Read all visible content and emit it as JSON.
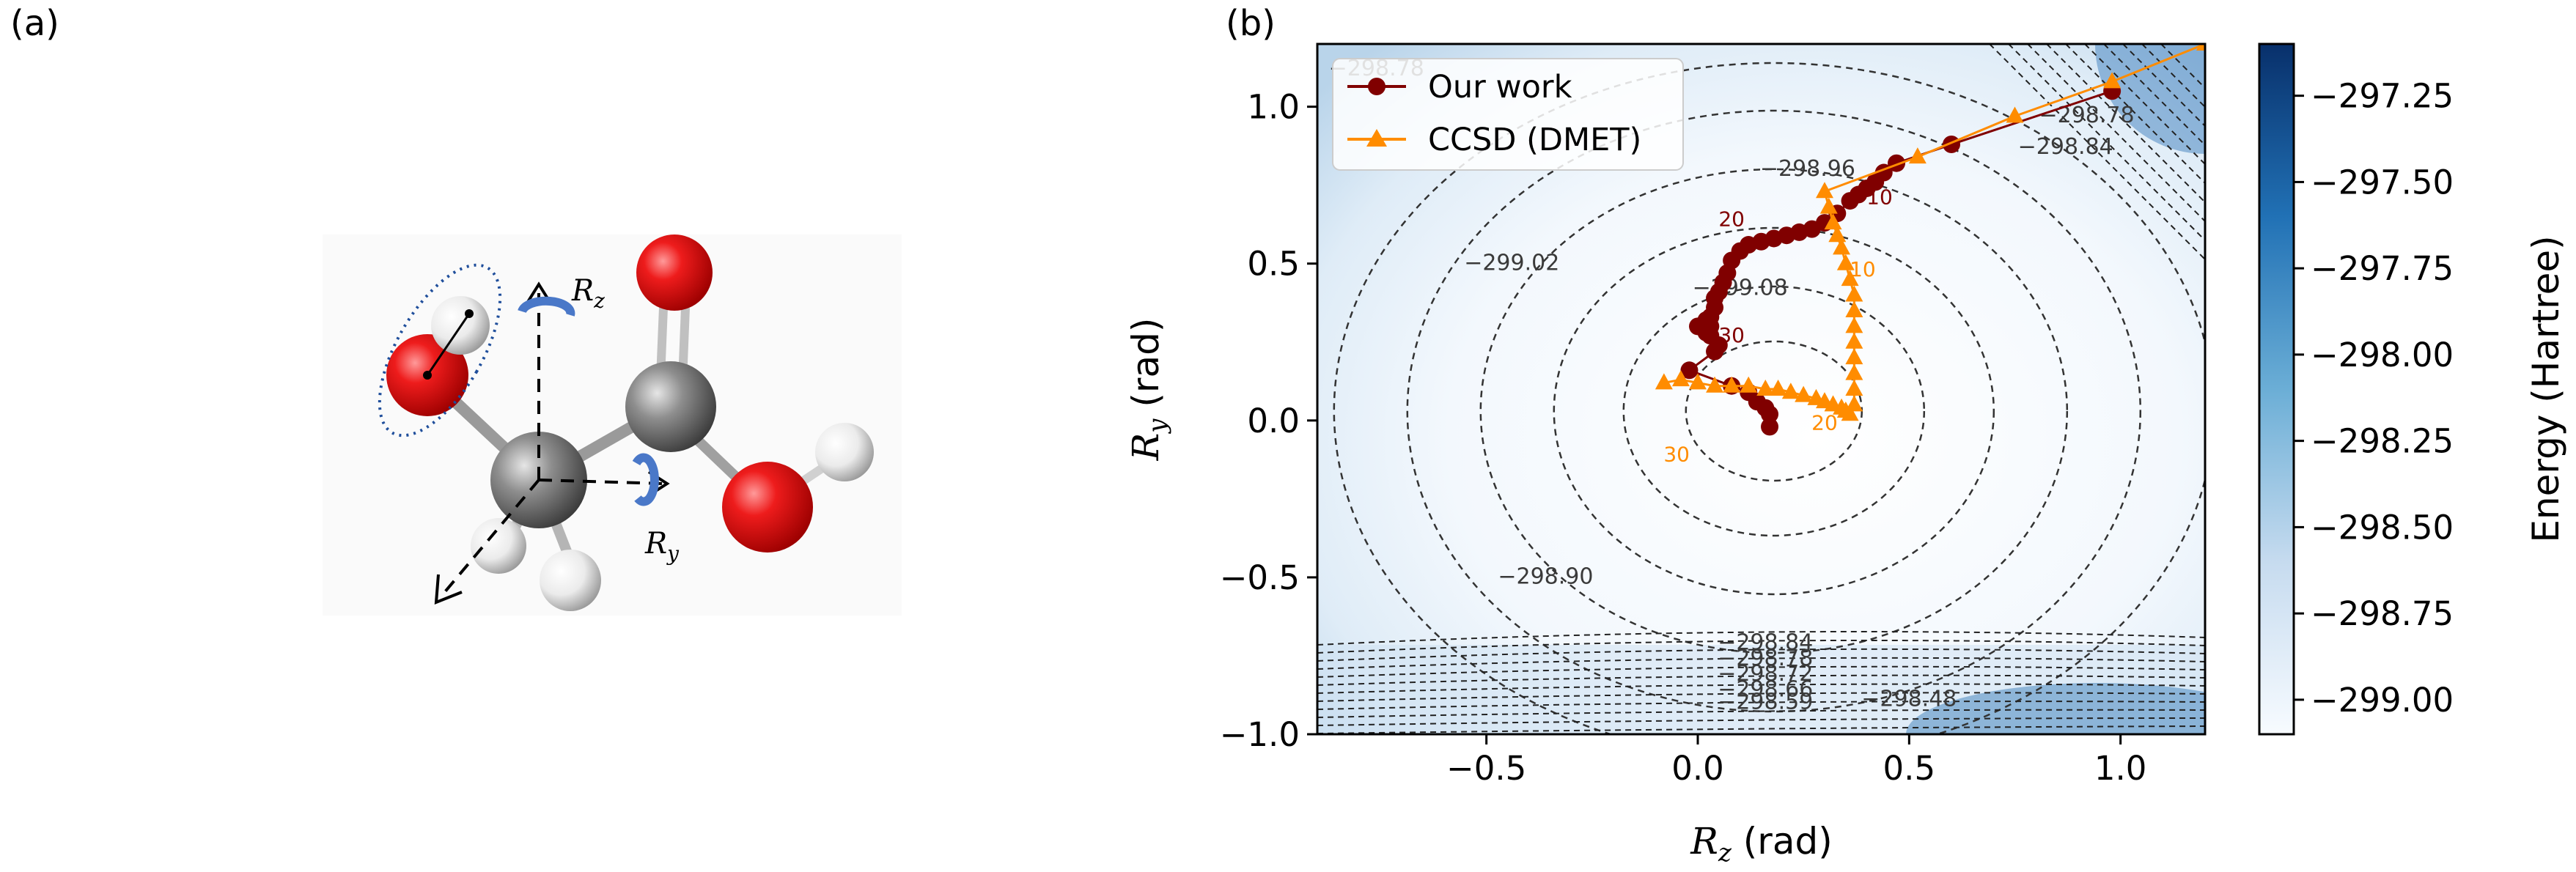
{
  "panel_labels": {
    "a": "(a)",
    "b": "(b)"
  },
  "molecule": {
    "rz_label": "R",
    "rz_sub": "z",
    "ry_label": "R",
    "ry_sub": "y"
  },
  "chart_data": {
    "type": "contour",
    "xlabel": "R",
    "xlabel_sub": "z",
    "xlabel_unit": "(rad)",
    "ylabel": "R",
    "ylabel_sub": "y",
    "ylabel_unit": "(rad)",
    "xlim": [
      -0.9,
      1.2
    ],
    "ylim": [
      -1.0,
      1.2
    ],
    "xticks": [
      -0.5,
      0.0,
      0.5,
      1.0
    ],
    "xtick_labels": [
      "−0.5",
      "0.0",
      "0.5",
      "1.0"
    ],
    "yticks": [
      -1.0,
      -0.5,
      0.0,
      0.5,
      1.0
    ],
    "ytick_labels": [
      "−1.0",
      "−0.5",
      "0.0",
      "0.5",
      "1.0"
    ],
    "grid": false,
    "legend_position": "top-left",
    "colorbar": {
      "label": "Energy (Hartree)",
      "range": [
        -299.1,
        -297.1
      ],
      "ticks": [
        -297.25,
        -297.5,
        -297.75,
        -298.0,
        -298.25,
        -298.5,
        -298.75,
        -299.0
      ],
      "tick_labels": [
        "−297.25",
        "−297.50",
        "−297.75",
        "−298.00",
        "−298.25",
        "−298.50",
        "−298.75",
        "−299.00"
      ],
      "colors": [
        "#f7fbff",
        "#c6dbef",
        "#6baed6",
        "#2171b5",
        "#08306b"
      ]
    },
    "contour_labels": [
      {
        "text": "299.02",
        "x": -0.44,
        "y": 0.48
      },
      {
        "text": "299.08",
        "x": 0.1,
        "y": 0.4
      },
      {
        "text": "298.96",
        "x": 0.26,
        "y": 0.78
      },
      {
        "text": "298.84",
        "x": 0.87,
        "y": 0.85
      },
      {
        "text": "298.90",
        "x": -0.36,
        "y": -0.52
      },
      {
        "text": "298.84",
        "x": 0.16,
        "y": -0.73
      },
      {
        "text": "298.78",
        "x": 0.16,
        "y": -0.78
      },
      {
        "text": "298.72",
        "x": 0.16,
        "y": -0.83
      },
      {
        "text": "298.66",
        "x": 0.16,
        "y": -0.88
      },
      {
        "text": "298.59",
        "x": 0.16,
        "y": -0.92
      },
      {
        "text": "298.48",
        "x": 0.5,
        "y": -0.91
      },
      {
        "text": "298.78",
        "x": 0.92,
        "y": 0.95
      },
      {
        "text": "298.78",
        "x": -0.76,
        "y": 1.1
      }
    ],
    "series": [
      {
        "name": "Our work",
        "color": "#800000",
        "marker": "circle",
        "x": [
          0.98,
          0.6,
          0.47,
          0.44,
          0.42,
          0.4,
          0.38,
          0.36,
          0.33,
          0.3,
          0.27,
          0.24,
          0.21,
          0.18,
          0.15,
          0.12,
          0.1,
          0.08,
          0.07,
          0.06,
          0.05,
          0.04,
          0.04,
          0.03,
          0.03,
          0.02,
          0.03,
          0.05,
          0.0,
          0.02,
          0.04,
          -0.02,
          0.08,
          0.12,
          0.14,
          0.16,
          0.17,
          0.17
        ],
        "y": [
          1.05,
          0.88,
          0.82,
          0.79,
          0.76,
          0.74,
          0.72,
          0.7,
          0.66,
          0.63,
          0.61,
          0.6,
          0.59,
          0.58,
          0.57,
          0.56,
          0.54,
          0.51,
          0.47,
          0.44,
          0.41,
          0.39,
          0.36,
          0.33,
          0.3,
          0.28,
          0.27,
          0.24,
          0.3,
          0.32,
          0.22,
          0.16,
          0.11,
          0.09,
          0.06,
          0.04,
          0.02,
          -0.02
        ]
      },
      {
        "name": "CCSD (DMET)",
        "color": "#ff8c00",
        "marker": "triangle",
        "x": [
          1.2,
          0.98,
          0.75,
          0.52,
          0.3,
          0.31,
          0.32,
          0.33,
          0.34,
          0.35,
          0.36,
          0.37,
          0.37,
          0.37,
          0.37,
          0.37,
          0.37,
          0.37,
          0.37,
          0.36,
          0.35,
          0.34,
          0.32,
          0.3,
          0.28,
          0.25,
          0.22,
          0.19,
          0.16,
          0.12,
          0.08,
          0.04,
          0.0,
          -0.04,
          -0.08
        ],
        "y": [
          1.2,
          1.08,
          0.97,
          0.84,
          0.73,
          0.68,
          0.63,
          0.59,
          0.55,
          0.5,
          0.45,
          0.4,
          0.35,
          0.3,
          0.25,
          0.2,
          0.15,
          0.1,
          0.05,
          0.02,
          0.03,
          0.04,
          0.05,
          0.06,
          0.07,
          0.08,
          0.09,
          0.1,
          0.1,
          0.11,
          0.11,
          0.11,
          0.12,
          0.13,
          0.12
        ]
      }
    ],
    "iteration_labels": [
      {
        "series": "Our work",
        "text": "10",
        "x": 0.43,
        "y": 0.69
      },
      {
        "series": "Our work",
        "text": "20",
        "x": 0.08,
        "y": 0.62
      },
      {
        "series": "Our work",
        "text": "30",
        "x": 0.08,
        "y": 0.25
      },
      {
        "series": "CCSD (DMET)",
        "text": "10",
        "x": 0.39,
        "y": 0.46
      },
      {
        "series": "CCSD (DMET)",
        "text": "20",
        "x": 0.3,
        "y": -0.03
      },
      {
        "series": "CCSD (DMET)",
        "text": "30",
        "x": -0.05,
        "y": -0.13
      }
    ]
  }
}
